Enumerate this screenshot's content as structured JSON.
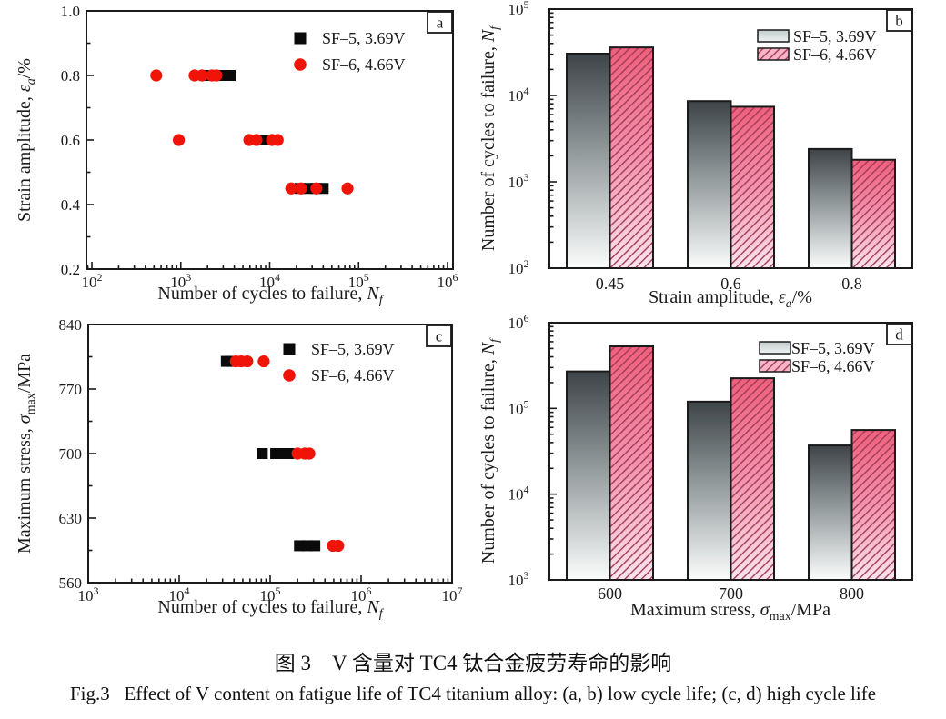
{
  "figure": {
    "caption_zh": "图 3　V 含量对 TC4 钛合金疲劳寿命的影响",
    "caption_en": "Fig.3   Effect of V content on fatigue life of TC4 titanium alloy: (a, b) low cycle life; (c, d) high cycle life"
  },
  "legend": {
    "sf5_label": "SF–5, 3.69V",
    "sf6_label": "SF–6, 4.66V"
  },
  "colors": {
    "axis": "#1a1a1a",
    "sf5_marker": "#0a0a0a",
    "sf6_marker": "#f01408",
    "sf5_bar_gradient": [
      "#3e4447",
      "#90989a",
      "#fbfcfc"
    ],
    "sf6_bar_gradient": [
      "#ef5f7d",
      "#f492ae",
      "#fbe4ee"
    ],
    "sf6_hatch": "#9e3d54",
    "sf5_legend_swatch": [
      "#c2cccb",
      "#eff3f3"
    ],
    "sf6_legend_swatch": "#f9b3c9"
  },
  "chart_data": [
    {
      "id": "a",
      "type": "scatter",
      "panel_label": "a",
      "xlabel": "Number of cycles to failure, Nf",
      "ylabel": "Strain amplitude, εa/%",
      "xlabel_rich": [
        {
          "t": "Number of cycles to failure, "
        },
        {
          "t": "N",
          "i": 1
        },
        {
          "t": "f",
          "i": 1,
          "sub": 1
        }
      ],
      "ylabel_rich": [
        {
          "t": "Strain amplitude, "
        },
        {
          "t": "ε",
          "i": 1
        },
        {
          "t": "a",
          "i": 1,
          "sub": 1
        },
        {
          "t": "/%"
        }
      ],
      "x_scale": "log",
      "x_exponents": [
        2,
        3,
        4,
        5,
        6
      ],
      "ylim": [
        0.2,
        1.0
      ],
      "y_ticks": [
        0.2,
        0.4,
        0.6,
        0.8,
        1.0
      ],
      "y_tick_decimals": 1,
      "y_minor_step": 0.1,
      "series": [
        {
          "name": "SF–5, 3.69V",
          "marker": "square",
          "points": [
            [
              2000,
              0.8
            ],
            [
              2700,
              0.8
            ],
            [
              3200,
              0.8
            ],
            [
              3600,
              0.8
            ],
            [
              8300,
              0.6
            ],
            [
              9400,
              0.6
            ],
            [
              22000,
              0.45
            ],
            [
              27000,
              0.45
            ],
            [
              33000,
              0.45
            ],
            [
              40000,
              0.45
            ]
          ]
        },
        {
          "name": "SF–6, 4.66V",
          "marker": "circle",
          "points": [
            [
              530,
              0.8
            ],
            [
              1430,
              0.8
            ],
            [
              1730,
              0.8
            ],
            [
              2240,
              0.8
            ],
            [
              2520,
              0.8
            ],
            [
              950,
              0.6
            ],
            [
              5900,
              0.6
            ],
            [
              7100,
              0.6
            ],
            [
              10600,
              0.6
            ],
            [
              12300,
              0.6
            ],
            [
              17500,
              0.45
            ],
            [
              22500,
              0.45
            ],
            [
              33500,
              0.45
            ],
            [
              75000,
              0.45
            ]
          ]
        }
      ]
    },
    {
      "id": "b",
      "type": "bar",
      "panel_label": "b",
      "xlabel": "Strain amplitude, εa/%",
      "ylabel": "Number of cycles to failure, Nf",
      "xlabel_rich": [
        {
          "t": "Strain amplitude, "
        },
        {
          "t": "ε",
          "i": 1
        },
        {
          "t": "a",
          "i": 1,
          "sub": 1
        },
        {
          "t": "/%"
        }
      ],
      "ylabel_rich": [
        {
          "t": "Number of cycles to failure, "
        },
        {
          "t": "N",
          "i": 1
        },
        {
          "t": "f",
          "i": 1,
          "sub": 1
        }
      ],
      "y_scale": "log",
      "y_exponents": [
        2,
        3,
        4,
        5
      ],
      "categories": [
        "0.45",
        "0.6",
        "0.8"
      ],
      "series": [
        {
          "name": "SF–5, 3.69V",
          "values": [
            30500,
            8600,
            2400
          ]
        },
        {
          "name": "SF–6, 4.66V",
          "values": [
            36000,
            7400,
            1800
          ]
        }
      ]
    },
    {
      "id": "c",
      "type": "scatter",
      "panel_label": "c",
      "xlabel": "Number of cycles to failure, Nf",
      "ylabel": "Maximum stress, σmax/MPa",
      "xlabel_rich": [
        {
          "t": "Number of cycles to failure, "
        },
        {
          "t": "N",
          "i": 1
        },
        {
          "t": "f",
          "i": 1,
          "sub": 1
        }
      ],
      "ylabel_rich": [
        {
          "t": "Maximum stress, "
        },
        {
          "t": "σ",
          "i": 1
        },
        {
          "t": "max",
          "sub": 1
        },
        {
          "t": "/MPa"
        }
      ],
      "x_scale": "log",
      "x_exponents": [
        3,
        4,
        5,
        6,
        7
      ],
      "ylim": [
        560,
        840
      ],
      "y_ticks": [
        560,
        630,
        700,
        770,
        840
      ],
      "y_tick_decimals": 0,
      "y_minor_step": 35,
      "series": [
        {
          "name": "SF–5, 3.69V",
          "marker": "square",
          "points": [
            [
              33000,
              800
            ],
            [
              36500,
              800
            ],
            [
              82000,
              700
            ],
            [
              115000,
              700
            ],
            [
              135000,
              700
            ],
            [
              160000,
              700
            ],
            [
              210000,
              600
            ],
            [
              255000,
              600
            ],
            [
              310000,
              600
            ]
          ]
        },
        {
          "name": "SF–6, 4.66V",
          "marker": "circle",
          "points": [
            [
              42000,
              800
            ],
            [
              48000,
              800
            ],
            [
              56000,
              800
            ],
            [
              85000,
              800
            ],
            [
              200000,
              700
            ],
            [
              240000,
              700
            ],
            [
              270000,
              700
            ],
            [
              490000,
              600
            ],
            [
              560000,
              600
            ]
          ]
        }
      ]
    },
    {
      "id": "d",
      "type": "bar",
      "panel_label": "d",
      "xlabel": "Maximum stress, σmax/MPa",
      "ylabel": "Number of cycles to failure, Nf",
      "xlabel_rich": [
        {
          "t": "Maximum stress, "
        },
        {
          "t": "σ",
          "i": 1
        },
        {
          "t": "max",
          "sub": 1
        },
        {
          "t": "/MPa"
        }
      ],
      "ylabel_rich": [
        {
          "t": "Number of cycles to failure, "
        },
        {
          "t": "N",
          "i": 1
        },
        {
          "t": "f",
          "i": 1,
          "sub": 1
        }
      ],
      "y_scale": "log",
      "y_exponents": [
        3,
        4,
        5,
        6
      ],
      "categories": [
        "600",
        "700",
        "800"
      ],
      "series": [
        {
          "name": "SF–5, 3.69V",
          "values": [
            270000,
            120000,
            37000
          ]
        },
        {
          "name": "SF–6, 4.66V",
          "values": [
            530000,
            225000,
            56000
          ]
        }
      ]
    }
  ]
}
